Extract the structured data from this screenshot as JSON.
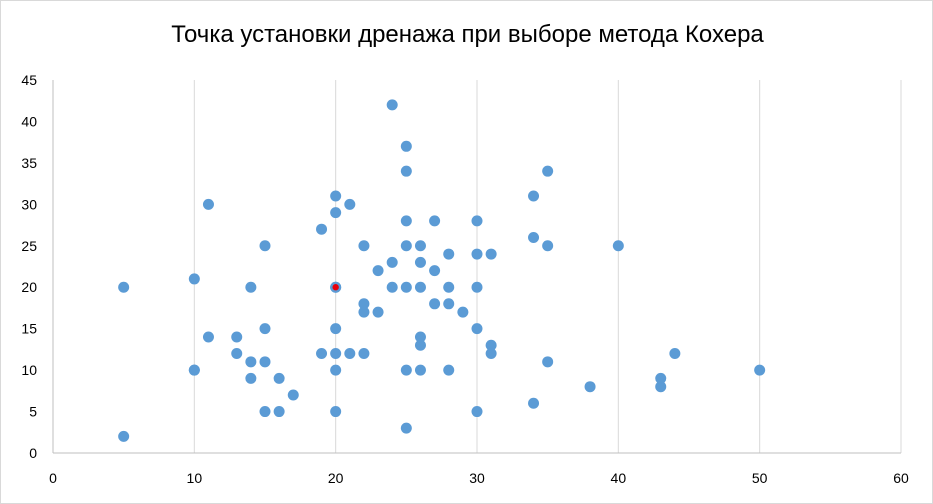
{
  "chart_data": {
    "type": "scatter",
    "title": "Точка установки дренажа при выборе метода Кохера",
    "xlabel": "",
    "ylabel": "",
    "xlim": [
      0,
      60
    ],
    "ylim": [
      0,
      45
    ],
    "x_ticks": [
      0,
      10,
      20,
      30,
      40,
      50,
      60
    ],
    "y_ticks": [
      0,
      5,
      10,
      15,
      20,
      25,
      30,
      35,
      40,
      45
    ],
    "grid": "vertical",
    "legend": "none",
    "point_color": "#5b9bd5",
    "highlight_color": "#e8000b",
    "series": [
      {
        "points": [
          [
            5,
            2
          ],
          [
            5,
            20
          ],
          [
            10,
            10
          ],
          [
            10,
            10
          ],
          [
            10,
            21
          ],
          [
            11,
            14
          ],
          [
            11,
            30
          ],
          [
            13,
            14
          ],
          [
            13,
            12
          ],
          [
            14,
            11
          ],
          [
            14,
            9
          ],
          [
            14,
            20
          ],
          [
            15,
            5
          ],
          [
            15,
            11
          ],
          [
            15,
            15
          ],
          [
            15,
            25
          ],
          [
            16,
            5
          ],
          [
            16,
            9
          ],
          [
            17,
            7
          ],
          [
            19,
            12
          ],
          [
            19,
            27
          ],
          [
            20,
            5
          ],
          [
            20,
            10
          ],
          [
            20,
            12
          ],
          [
            20,
            15
          ],
          [
            20,
            20
          ],
          [
            20,
            29
          ],
          [
            20,
            31
          ],
          [
            21,
            12
          ],
          [
            21,
            30
          ],
          [
            22,
            12
          ],
          [
            22,
            17
          ],
          [
            22,
            18
          ],
          [
            22,
            25
          ],
          [
            23,
            17
          ],
          [
            23,
            22
          ],
          [
            24,
            20
          ],
          [
            24,
            23
          ],
          [
            24,
            42
          ],
          [
            25,
            3
          ],
          [
            25,
            10
          ],
          [
            25,
            20
          ],
          [
            25,
            25
          ],
          [
            25,
            28
          ],
          [
            25,
            34
          ],
          [
            25,
            37
          ],
          [
            26,
            10
          ],
          [
            26,
            13
          ],
          [
            26,
            14
          ],
          [
            26,
            20
          ],
          [
            26,
            23
          ],
          [
            26,
            25
          ],
          [
            27,
            18
          ],
          [
            27,
            22
          ],
          [
            27,
            28
          ],
          [
            28,
            10
          ],
          [
            28,
            18
          ],
          [
            28,
            20
          ],
          [
            28,
            24
          ],
          [
            29,
            17
          ],
          [
            30,
            5
          ],
          [
            30,
            15
          ],
          [
            30,
            20
          ],
          [
            30,
            24
          ],
          [
            30,
            28
          ],
          [
            31,
            12
          ],
          [
            31,
            13
          ],
          [
            31,
            24
          ],
          [
            34,
            6
          ],
          [
            34,
            26
          ],
          [
            34,
            31
          ],
          [
            35,
            11
          ],
          [
            35,
            25
          ],
          [
            35,
            34
          ],
          [
            38,
            8
          ],
          [
            40,
            25
          ],
          [
            43,
            8
          ],
          [
            43,
            9
          ],
          [
            44,
            12
          ],
          [
            50,
            10
          ]
        ]
      }
    ],
    "highlight_points": [
      [
        20,
        20
      ]
    ]
  }
}
